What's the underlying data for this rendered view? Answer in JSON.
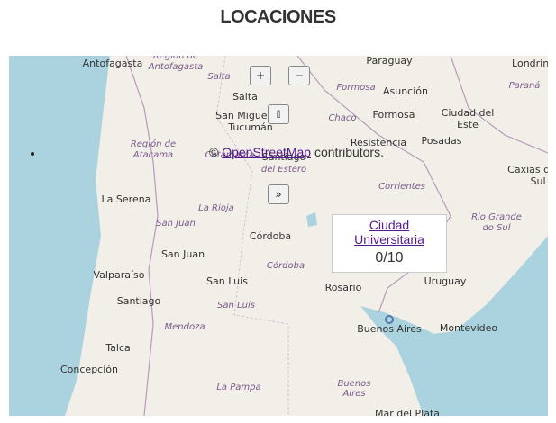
{
  "title": "LOCACIONES",
  "controls": [
    "+",
    "−",
    "⇧",
    "»"
  ],
  "attribution": {
    "prefix": "©",
    "link": "OpenStreetMap",
    "suffix": "contributors."
  },
  "popup": {
    "link": "Ciudad Universitaria",
    "count": "0/10"
  },
  "map_labels": [
    "Antofagasta",
    "Región de",
    "Antofagasta",
    "Salta",
    "Salta",
    "San Miguel de",
    "Tucumán",
    "Paraguay",
    "Formosa",
    "Asunción",
    "Formosa",
    "Chaco",
    "Ciudad del",
    "Este",
    "Londrina",
    "Paraná",
    "Resistencia",
    "Posadas",
    "Región de",
    "Atacama",
    "Catamarca",
    "Santiago",
    "del Estero",
    "Caxias do",
    "Sul",
    "Corrientes",
    "La Serena",
    "La Rioja",
    "San Juan",
    "Rio Grande",
    "do Sul",
    "Córdoba",
    "San Juan",
    "Córdoba",
    "Valparaíso",
    "San Luis",
    "Rosario",
    "Uruguay",
    "Santiago",
    "San Luis",
    "Mendoza",
    "Buenos Aires",
    "Montevideo",
    "Talca",
    "Concepción",
    "La Pampa",
    "Buenos",
    "Aires",
    "Mar del Plata"
  ]
}
